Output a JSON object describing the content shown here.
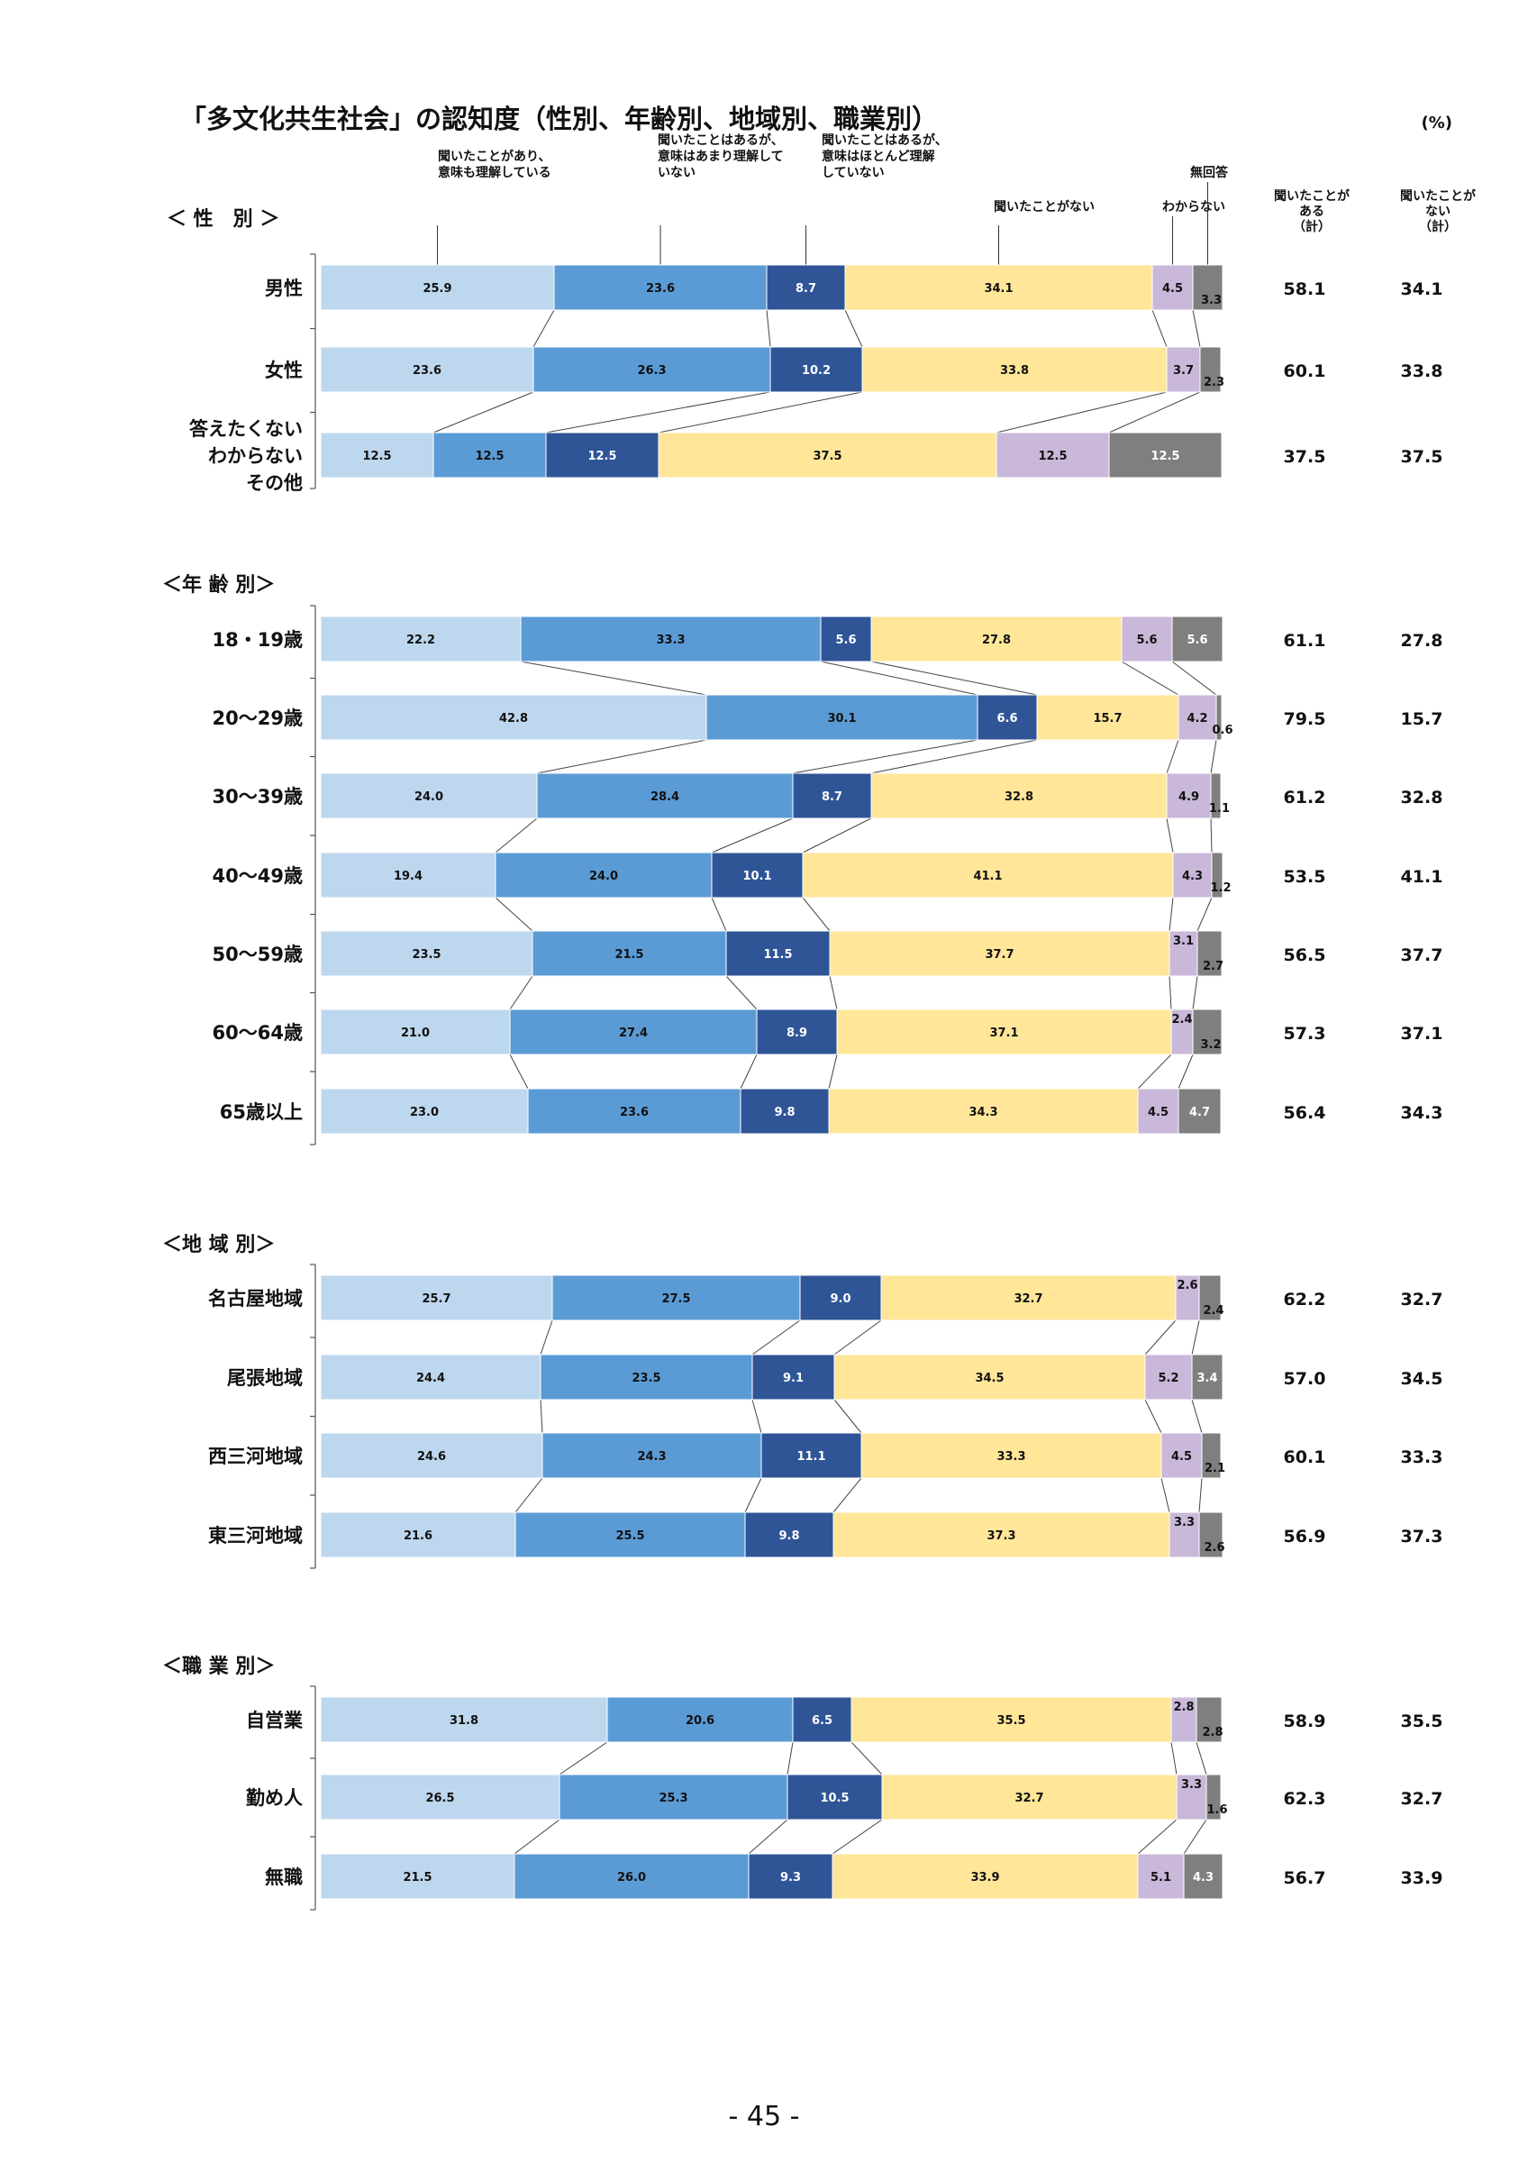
{
  "title": "「多文化共生社会」の認知度（性別、年齢別、地域別、職業別）",
  "unit": "(%)",
  "page_number": "- 45 -",
  "legend": [
    "聞いたことがあり、意味も理解している",
    "聞いたことはあるが、意味はあまり理解していない",
    "聞いたことはあるが、意味はほとんど理解していない",
    "聞いたことがない",
    "わからない",
    "無回答"
  ],
  "legend_display": [
    [
      "聞いたことがあり、",
      "意味も理解している"
    ],
    [
      "聞いたことはあるが、",
      "意味はあまり理解して",
      "いない"
    ],
    [
      "聞いたことはあるが、",
      "意味はほとんど理解",
      "していない"
    ],
    [
      "聞いたことがない"
    ],
    [
      "わからない"
    ],
    [
      "無回答"
    ]
  ],
  "summary_headers": [
    [
      "聞いたことが",
      "ある",
      "（計）"
    ],
    [
      "聞いたことが",
      "ない",
      "（計）"
    ]
  ],
  "colors": [
    "#bdd7ee",
    "#5b9bd5",
    "#2f5597",
    "#ffe699",
    "#c9b8d9",
    "#7f7f7f"
  ],
  "chart_data": {
    "type": "bar",
    "stacked": true,
    "orientation": "horizontal",
    "series_names": [
      "聞いたことがあり、意味も理解している",
      "聞いたことはあるが、意味はあまり理解していない",
      "聞いたことはあるが、意味はほとんど理解していない",
      "聞いたことがない",
      "わからない",
      "無回答"
    ],
    "groups": [
      {
        "name": "＜ 性　別 ＞",
        "rows": [
          {
            "label": "男性",
            "values": [
              25.9,
              23.6,
              8.7,
              34.1,
              4.5,
              3.3
            ],
            "labels": [
              "25.9",
              "23.6",
              "8.7",
              "34.1",
              "4.5",
              "3.3"
            ],
            "heard": "58.1",
            "not_heard": "34.1"
          },
          {
            "label": "女性",
            "values": [
              23.6,
              26.3,
              10.2,
              33.8,
              3.7,
              2.3
            ],
            "labels": [
              "23.6",
              "26.3",
              "10.2",
              "33.8",
              "3.7",
              "2.3"
            ],
            "heard": "60.1",
            "not_heard": "33.8"
          },
          {
            "label": "答えたくない\nわからない\nその他",
            "values": [
              12.5,
              12.5,
              12.5,
              37.5,
              12.5,
              12.5
            ],
            "labels": [
              "12.5",
              "12.5",
              "12.5",
              "37.5",
              "12.5",
              "12.5"
            ],
            "heard": "37.5",
            "not_heard": "37.5"
          }
        ]
      },
      {
        "name": "＜年 齢 別＞",
        "rows": [
          {
            "label": "18・19歳",
            "values": [
              22.2,
              33.3,
              5.6,
              27.8,
              5.6,
              5.6
            ],
            "labels": [
              "22.2",
              "33.3",
              "5.6",
              "27.8",
              "5.6",
              "5.6"
            ],
            "heard": "61.1",
            "not_heard": "27.8"
          },
          {
            "label": "20～29歳",
            "values": [
              42.8,
              30.1,
              6.6,
              15.7,
              4.2,
              0.6
            ],
            "labels": [
              "42.8",
              "30.1",
              "6.6",
              "15.7",
              "4.2",
              "0.6"
            ],
            "heard": "79.5",
            "not_heard": "15.7"
          },
          {
            "label": "30～39歳",
            "values": [
              24.0,
              28.4,
              8.7,
              32.8,
              4.9,
              1.1
            ],
            "labels": [
              "24.0",
              "28.4",
              "8.7",
              "32.8",
              "4.9",
              "1.1"
            ],
            "heard": "61.2",
            "not_heard": "32.8"
          },
          {
            "label": "40～49歳",
            "values": [
              19.4,
              24.0,
              10.1,
              41.1,
              4.3,
              1.2
            ],
            "labels": [
              "19.4",
              "24.0",
              "10.1",
              "41.1",
              "4.3",
              "1.2"
            ],
            "heard": "53.5",
            "not_heard": "41.1"
          },
          {
            "label": "50～59歳",
            "values": [
              23.5,
              21.5,
              11.5,
              37.7,
              3.1,
              2.7
            ],
            "labels": [
              "23.5",
              "21.5",
              "11.5",
              "37.7",
              "3.1",
              "2.7"
            ],
            "heard": "56.5",
            "not_heard": "37.7"
          },
          {
            "label": "60～64歳",
            "values": [
              21.0,
              27.4,
              8.9,
              37.1,
              2.4,
              3.2
            ],
            "labels": [
              "21.0",
              "27.4",
              "8.9",
              "37.1",
              "2.4",
              "3.2"
            ],
            "heard": "57.3",
            "not_heard": "37.1"
          },
          {
            "label": "65歳以上",
            "values": [
              23.0,
              23.6,
              9.8,
              34.3,
              4.5,
              4.7
            ],
            "labels": [
              "23.0",
              "23.6",
              "9.8",
              "34.3",
              "4.5",
              "4.7"
            ],
            "heard": "56.4",
            "not_heard": "34.3"
          }
        ]
      },
      {
        "name": "＜地 域 別＞",
        "rows": [
          {
            "label": "名古屋地域",
            "values": [
              25.7,
              27.5,
              9.0,
              32.7,
              2.6,
              2.4
            ],
            "labels": [
              "25.7",
              "27.5",
              "9.0",
              "32.7",
              "2.6",
              "2.4"
            ],
            "heard": "62.2",
            "not_heard": "32.7"
          },
          {
            "label": "尾張地域",
            "values": [
              24.4,
              23.5,
              9.1,
              34.5,
              5.2,
              3.4
            ],
            "labels": [
              "24.4",
              "23.5",
              "9.1",
              "34.5",
              "5.2",
              "3.4"
            ],
            "heard": "57.0",
            "not_heard": "34.5"
          },
          {
            "label": "西三河地域",
            "values": [
              24.6,
              24.3,
              11.1,
              33.3,
              4.5,
              2.1
            ],
            "labels": [
              "24.6",
              "24.3",
              "11.1",
              "33.3",
              "4.5",
              "2.1"
            ],
            "heard": "60.1",
            "not_heard": "33.3"
          },
          {
            "label": "東三河地域",
            "values": [
              21.6,
              25.5,
              9.8,
              37.3,
              3.3,
              2.6
            ],
            "labels": [
              "21.6",
              "25.5",
              "9.8",
              "37.3",
              "3.3",
              "2.6"
            ],
            "heard": "56.9",
            "not_heard": "37.3"
          }
        ]
      },
      {
        "name": "＜職 業 別＞",
        "rows": [
          {
            "label": "自営業",
            "values": [
              31.8,
              20.6,
              6.5,
              35.5,
              2.8,
              2.8
            ],
            "labels": [
              "31.8",
              "20.6",
              "6.5",
              "35.5",
              "2.8",
              "2.8"
            ],
            "heard": "58.9",
            "not_heard": "35.5"
          },
          {
            "label": "勤め人",
            "values": [
              26.5,
              25.3,
              10.5,
              32.7,
              3.3,
              1.6
            ],
            "labels": [
              "26.5",
              "25.3",
              "10.5",
              "32.7",
              "3.3",
              "1.6"
            ],
            "heard": "62.3",
            "not_heard": "32.7"
          },
          {
            "label": "無職",
            "values": [
              21.5,
              26.0,
              9.3,
              33.9,
              5.1,
              4.3
            ],
            "labels": [
              "21.5",
              "26.0",
              "9.3",
              "33.9",
              "5.1",
              "4.3"
            ],
            "heard": "56.7",
            "not_heard": "33.9"
          }
        ]
      }
    ]
  }
}
